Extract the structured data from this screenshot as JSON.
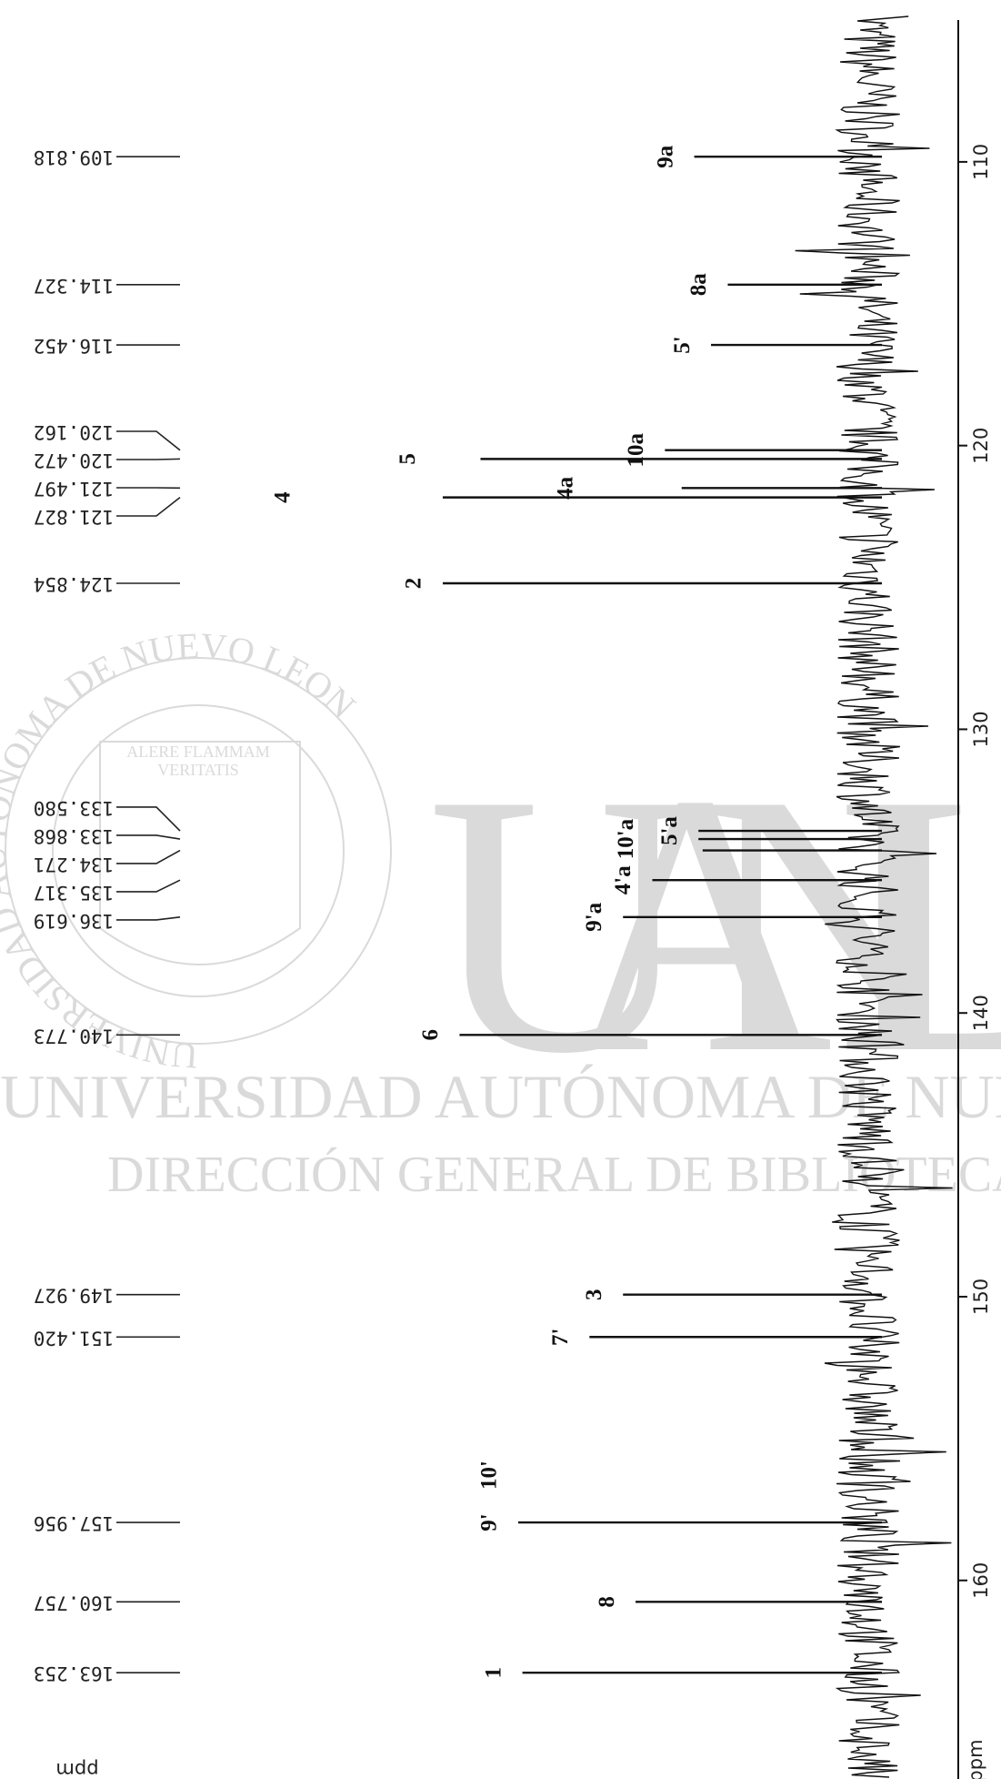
{
  "chart_data": {
    "type": "nmr",
    "x_label": "ppm",
    "xlim": [
      105,
      167
    ],
    "xticks": [
      110,
      120,
      130,
      140,
      150,
      160
    ],
    "peaks": {
      "shifts": [
        109.818,
        114.327,
        116.452,
        120.162,
        120.472,
        121.497,
        121.827,
        124.854,
        {
          "value": 133.58,
          "label": "133.580"
        },
        133.868,
        134.271,
        135.317,
        136.619,
        140.773,
        149.927,
        {
          "value": 151.42,
          "label": "151.420"
        },
        157.956,
        160.757,
        163.253
      ],
      "intensities": [
        40,
        32,
        36,
        47,
        91,
        43,
        100,
        100,
        39,
        39,
        38,
        50,
        57,
        96,
        57,
        65,
        82,
        54,
        81
      ],
      "assignments": [
        [
          "9a"
        ],
        [
          "8a"
        ],
        [
          "5'"
        ],
        [
          "10a"
        ],
        [
          "5"
        ],
        [
          "4a"
        ],
        [
          "4"
        ],
        [
          "2"
        ],
        [
          "5'a"
        ],
        [
          "10'a"
        ],
        null,
        [
          "4'a"
        ],
        [
          "9'a"
        ],
        [
          "6"
        ],
        [
          "3"
        ],
        [
          "7'"
        ],
        [
          "9'",
          "10'"
        ],
        [
          "8"
        ],
        [
          "1"
        ]
      ]
    },
    "color": "#111111"
  },
  "watermark": {
    "seal_ring": "UNIVERSIDAD AUTONOMA DE NUEVO LEON",
    "motto_1": "ALERE FLAMMAM",
    "motto_2": "VERITATIS",
    "initials": "UANL",
    "line_1": "UNIVERSIDAD AUTÓNOMA DE NUEVO LEÓN",
    "line_2": "DIRECCIÓN GENERAL DE BIBLIOTECAS"
  }
}
